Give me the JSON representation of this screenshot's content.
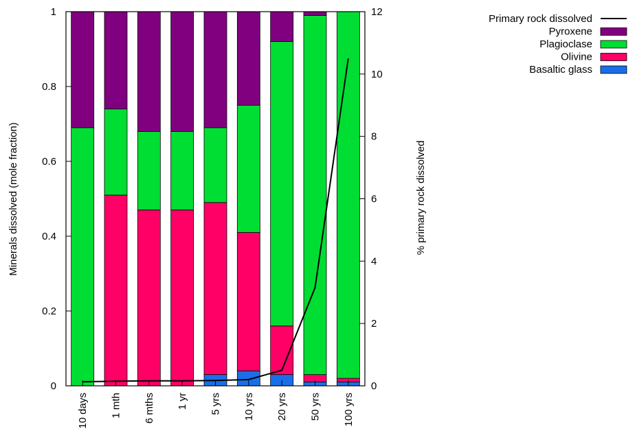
{
  "chart_data": {
    "type": "bar",
    "stacked": true,
    "categories": [
      "10 days",
      "1 mth",
      "6 mths",
      "1 yr",
      "5 yrs",
      "10 yrs",
      "20 yrs",
      "50 yrs",
      "100 yrs"
    ],
    "series": [
      {
        "name": "Basaltic glass",
        "color": "#1a6fe8",
        "values": [
          0.0,
          0.0,
          0.0,
          0.0,
          0.03,
          0.04,
          0.03,
          0.01,
          0.01
        ]
      },
      {
        "name": "Olivine",
        "color": "#ff0066",
        "values": [
          0.0,
          0.51,
          0.47,
          0.47,
          0.46,
          0.37,
          0.13,
          0.02,
          0.01
        ]
      },
      {
        "name": "Plagioclase",
        "color": "#00dd33",
        "values": [
          0.69,
          0.23,
          0.21,
          0.21,
          0.2,
          0.34,
          0.76,
          0.96,
          0.98
        ]
      },
      {
        "name": "Pyroxene",
        "color": "#800080",
        "values": [
          0.31,
          0.26,
          0.32,
          0.32,
          0.31,
          0.25,
          0.08,
          0.01,
          0.0
        ]
      }
    ],
    "line_series": {
      "name": "Primary rock dissolved",
      "color": "#000000",
      "axis": "right",
      "values": [
        0.13,
        0.15,
        0.16,
        0.16,
        0.17,
        0.2,
        0.5,
        3.15,
        10.5
      ]
    },
    "ylabel": "Minerals dissolved (mole fraction)",
    "y2label": "% primary rock dissolved",
    "xlabel": "",
    "ylim": [
      0,
      1
    ],
    "y2lim": [
      0,
      12
    ],
    "yticks": [
      "0",
      "0.2",
      "0.4",
      "0.6",
      "0.8",
      "1"
    ],
    "y2ticks": [
      "0",
      "2",
      "4",
      "6",
      "8",
      "10",
      "12"
    ],
    "legend_placement": "top-right, outside plot",
    "legend_order": [
      "Primary rock dissolved",
      "Pyroxene",
      "Plagioclase",
      "Olivine",
      "Basaltic glass"
    ],
    "grid": false
  }
}
